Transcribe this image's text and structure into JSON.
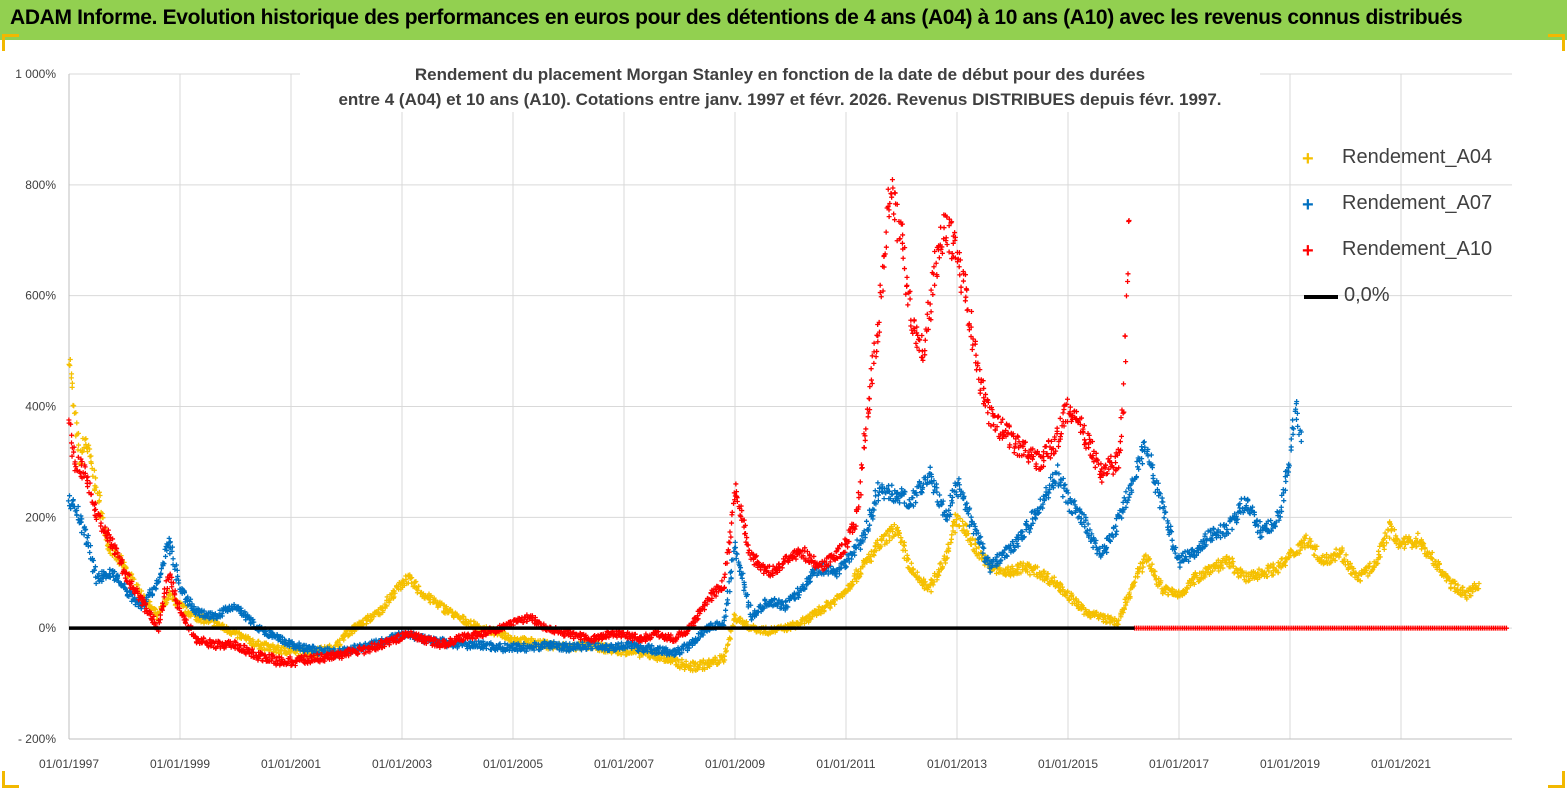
{
  "header": {
    "title": "ADAM Informe. Evolution historique des performances en euros pour des détentions de 4 ans (A04) à 10 ans (A10) avec les revenus connus distribués",
    "background": "#92d050",
    "corner_color": "#f2b800"
  },
  "chart_data": {
    "type": "scatter",
    "title_line1": "Rendement du placement Morgan Stanley en fonction de la date de début pour des durées",
    "title_line2": "entre 4 (A04) et 10 ans (A10).  Cotations entre janv. 1997 et févr. 2026. Revenus DISTRIBUES depuis févr. 1997.",
    "xlabel": "",
    "ylabel": "",
    "ylim": [
      -200,
      1000
    ],
    "xlim": [
      1997.0,
      2023.0
    ],
    "y_ticks": [
      {
        "value": -200,
        "label": "- 200%"
      },
      {
        "value": 0,
        "label": "0%"
      },
      {
        "value": 200,
        "label": "200%"
      },
      {
        "value": 400,
        "label": "400%"
      },
      {
        "value": 600,
        "label": "600%"
      },
      {
        "value": 800,
        "label": "800%"
      },
      {
        "value": 1000,
        "label": "1 000%"
      }
    ],
    "x_ticks": [
      {
        "value": 1997,
        "label": "01/01/1997"
      },
      {
        "value": 1999,
        "label": "01/01/1999"
      },
      {
        "value": 2001,
        "label": "01/01/2001"
      },
      {
        "value": 2003,
        "label": "01/01/2003"
      },
      {
        "value": 2005,
        "label": "01/01/2005"
      },
      {
        "value": 2007,
        "label": "01/01/2007"
      },
      {
        "value": 2009,
        "label": "01/01/2009"
      },
      {
        "value": 2011,
        "label": "01/01/2011"
      },
      {
        "value": 2013,
        "label": "01/01/2013"
      },
      {
        "value": 2015,
        "label": "01/01/2015"
      },
      {
        "value": 2017,
        "label": "01/01/2017"
      },
      {
        "value": 2019,
        "label": "01/01/2019"
      },
      {
        "value": 2021,
        "label": "01/01/2021"
      }
    ],
    "legend_position": "right",
    "series": [
      {
        "name": "Rendement_A04",
        "color": "#f5c000",
        "marker": "+",
        "x": [
          1997.0,
          1997.1,
          1997.2,
          1997.3,
          1997.5,
          1997.7,
          1998.0,
          1998.3,
          1998.6,
          1998.8,
          1999.0,
          1999.3,
          1999.6,
          2000.0,
          2000.4,
          2000.8,
          2001.0,
          2001.4,
          2001.8,
          2002.0,
          2002.3,
          2002.6,
          2002.9,
          2003.1,
          2003.4,
          2003.7,
          2004.0,
          2004.4,
          2004.8,
          2005.0,
          2005.3,
          2005.6,
          2006.0,
          2006.4,
          2006.8,
          2007.0,
          2007.3,
          2007.6,
          2007.9,
          2008.2,
          2008.5,
          2008.8,
          2009.0,
          2009.3,
          2009.6,
          2009.9,
          2010.2,
          2010.5,
          2010.8,
          2011.0,
          2011.3,
          2011.6,
          2011.9,
          2012.2,
          2012.5,
          2012.8,
          2013.0,
          2013.3,
          2013.6,
          2013.9,
          2014.2,
          2014.5,
          2014.8,
          2015.0,
          2015.3,
          2015.6,
          2015.9,
          2016.1,
          2016.4,
          2016.7,
          2017.0,
          2017.3,
          2017.6,
          2017.9,
          2018.2,
          2018.5,
          2018.8,
          2019.0,
          2019.3,
          2019.6,
          2019.9,
          2020.2,
          2020.5,
          2020.8,
          2021.0,
          2021.3,
          2021.6,
          2021.9,
          2022.2,
          2022.4
        ],
        "y": [
          500,
          380,
          300,
          340,
          250,
          150,
          110,
          60,
          20,
          60,
          40,
          20,
          10,
          -10,
          -30,
          -40,
          -40,
          -45,
          -35,
          -10,
          10,
          30,
          70,
          90,
          60,
          40,
          20,
          0,
          -10,
          -20,
          -25,
          -30,
          -35,
          -30,
          -40,
          -40,
          -45,
          -50,
          -60,
          -70,
          -65,
          -55,
          20,
          0,
          -5,
          0,
          10,
          30,
          50,
          70,
          110,
          150,
          180,
          100,
          70,
          130,
          200,
          150,
          110,
          100,
          110,
          100,
          80,
          60,
          30,
          20,
          10,
          60,
          130,
          70,
          60,
          90,
          110,
          120,
          90,
          100,
          110,
          130,
          160,
          120,
          140,
          90,
          110,
          180,
          150,
          160,
          120,
          80,
          60,
          80
        ],
        "tail_x": [],
        "tail_y": []
      },
      {
        "name": "Rendement_A07",
        "color": "#0070c0",
        "marker": "+",
        "x": [
          1997.0,
          1997.1,
          1997.3,
          1997.5,
          1997.8,
          1998.0,
          1998.3,
          1998.6,
          1998.8,
          1999.0,
          1999.3,
          1999.6,
          2000.0,
          2000.4,
          2000.8,
          2001.0,
          2001.4,
          2001.8,
          2002.0,
          2002.3,
          2002.6,
          2002.9,
          2003.1,
          2003.4,
          2003.7,
          2004.0,
          2004.4,
          2004.8,
          2005.0,
          2005.3,
          2005.6,
          2006.0,
          2006.4,
          2006.8,
          2007.0,
          2007.3,
          2007.6,
          2007.9,
          2008.2,
          2008.5,
          2008.8,
          2009.0,
          2009.3,
          2009.6,
          2009.9,
          2010.2,
          2010.5,
          2010.8,
          2011.0,
          2011.3,
          2011.6,
          2011.9,
          2012.2,
          2012.5,
          2012.8,
          2013.0,
          2013.3,
          2013.6,
          2013.9,
          2014.2,
          2014.5,
          2014.8,
          2015.0,
          2015.3,
          2015.6,
          2015.9,
          2016.1,
          2016.4,
          2016.7,
          2017.0,
          2017.3,
          2017.6,
          2017.9,
          2018.2,
          2018.5,
          2018.8,
          2019.0,
          2019.1,
          2019.2
        ],
        "y": [
          230,
          220,
          170,
          90,
          100,
          70,
          40,
          80,
          160,
          70,
          30,
          20,
          40,
          0,
          -20,
          -30,
          -40,
          -45,
          -40,
          -35,
          -25,
          -15,
          -10,
          -20,
          -25,
          -30,
          -30,
          -35,
          -35,
          -35,
          -30,
          -35,
          -30,
          -35,
          -30,
          -35,
          -40,
          -45,
          -30,
          0,
          10,
          150,
          20,
          50,
          40,
          70,
          110,
          100,
          120,
          160,
          250,
          240,
          230,
          280,
          200,
          260,
          180,
          110,
          140,
          170,
          220,
          280,
          230,
          190,
          130,
          190,
          250,
          330,
          220,
          120,
          140,
          170,
          180,
          230,
          170,
          200,
          300,
          400,
          350
        ],
        "tail_x": [],
        "tail_y": []
      },
      {
        "name": "Rendement_A10",
        "color": "#ff0000",
        "marker": "+",
        "x": [
          1997.0,
          1997.1,
          1997.3,
          1997.5,
          1997.8,
          1998.0,
          1998.3,
          1998.6,
          1998.8,
          1999.0,
          1999.3,
          1999.6,
          2000.0,
          2000.4,
          2000.8,
          2001.0,
          2001.4,
          2001.8,
          2002.0,
          2002.3,
          2002.6,
          2002.9,
          2003.1,
          2003.4,
          2003.7,
          2004.0,
          2004.4,
          2004.8,
          2005.0,
          2005.3,
          2005.6,
          2006.0,
          2006.4,
          2006.8,
          2007.0,
          2007.3,
          2007.6,
          2007.9,
          2008.2,
          2008.5,
          2008.8,
          2009.0,
          2009.3,
          2009.6,
          2009.9,
          2010.2,
          2010.5,
          2010.8,
          2011.0,
          2011.2,
          2011.4,
          2011.6,
          2011.8,
          2012.0,
          2012.2,
          2012.4,
          2012.6,
          2012.8,
          2013.0,
          2013.2,
          2013.4,
          2013.6,
          2013.9,
          2014.2,
          2014.5,
          2014.8,
          2015.0,
          2015.3,
          2015.6,
          2015.9,
          2016.0,
          2016.1
        ],
        "y": [
          370,
          300,
          280,
          200,
          150,
          100,
          50,
          0,
          100,
          30,
          -20,
          -30,
          -30,
          -50,
          -60,
          -60,
          -55,
          -50,
          -45,
          -40,
          -30,
          -20,
          -10,
          -20,
          -30,
          -20,
          -10,
          0,
          10,
          20,
          0,
          -10,
          -20,
          -10,
          -10,
          -20,
          -10,
          -20,
          0,
          50,
          80,
          250,
          130,
          100,
          120,
          140,
          110,
          130,
          150,
          200,
          400,
          550,
          800,
          700,
          550,
          500,
          650,
          720,
          680,
          580,
          450,
          380,
          350,
          320,
          300,
          340,
          400,
          350,
          280,
          300,
          400,
          750
        ],
        "tail_x": [
          2016.2,
          2022.9
        ],
        "tail_y": [
          0,
          0
        ]
      },
      {
        "name": "0,0%",
        "color": "#000000",
        "marker": "line",
        "x": [
          1997.0,
          2016.2
        ],
        "y": [
          0,
          0
        ],
        "tail_x": [],
        "tail_y": []
      }
    ]
  }
}
